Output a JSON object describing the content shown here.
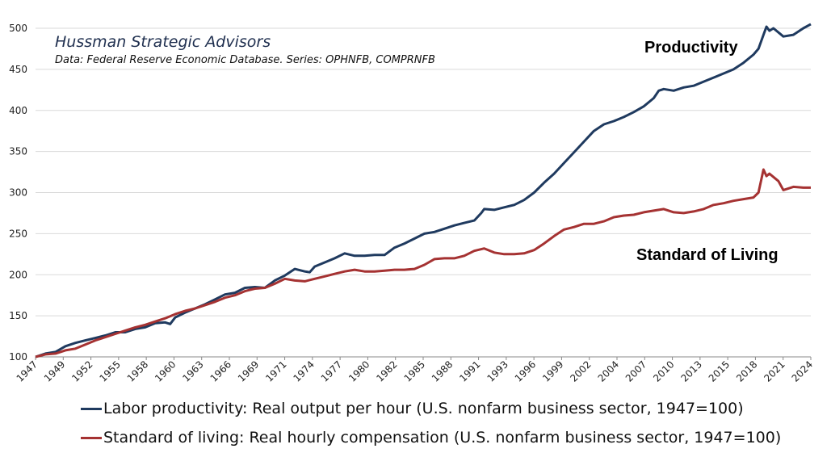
{
  "chart_data": {
    "type": "line",
    "title": "Hussman Strategic Advisors",
    "subtitle": "Data: Federal Reserve Economic Database. Series: OPHNFB, COMPRNFB",
    "xlim": [
      1947,
      2024.75
    ],
    "ylim": [
      100,
      510
    ],
    "y_ticks": [
      100,
      150,
      200,
      250,
      300,
      350,
      400,
      450,
      500
    ],
    "x_tick_labels": [
      "1947",
      "1949",
      "1952",
      "1955",
      "1958",
      "1960",
      "1963",
      "1966",
      "1969",
      "1971",
      "1974",
      "1977",
      "1980",
      "1982",
      "1985",
      "1988",
      "1991",
      "1993",
      "1996",
      "1999",
      "2002",
      "2004",
      "2007",
      "2010",
      "2013",
      "2015",
      "2018",
      "2021",
      "2024"
    ],
    "grid": true,
    "annotations": [
      {
        "text": "Productivity",
        "series": "productivity"
      },
      {
        "text": "Standard of Living",
        "series": "living"
      }
    ],
    "series": [
      {
        "name": "Labor productivity: Real output per hour (U.S. nonfarm business sector, 1947=100)",
        "key": "productivity",
        "color": "#1f3a5f",
        "x": [
          1947,
          1948,
          1949,
          1950,
          1951,
          1952,
          1953,
          1954,
          1955,
          1956,
          1957,
          1958,
          1959,
          1960,
          1960.5,
          1961,
          1962,
          1963,
          1964,
          1965,
          1966,
          1967,
          1968,
          1969,
          1970,
          1971,
          1972,
          1973,
          1974,
          1974.5,
          1975,
          1976,
          1977,
          1978,
          1979,
          1980,
          1981,
          1982,
          1983,
          1984,
          1985,
          1986,
          1987,
          1988,
          1989,
          1990,
          1991,
          1991.7,
          1992,
          1993,
          1994,
          1995,
          1996,
          1997,
          1998,
          1999,
          2000,
          2001,
          2002,
          2003,
          2004,
          2005,
          2006,
          2007,
          2008,
          2009,
          2009.5,
          2010,
          2011,
          2012,
          2013,
          2014,
          2015,
          2016,
          2017,
          2018,
          2019,
          2019.5,
          2020,
          2020.3,
          2020.6,
          2021,
          2022,
          2023,
          2024,
          2024.75
        ],
        "values": [
          100,
          104,
          106,
          113,
          117,
          120,
          123,
          126,
          130,
          130,
          134,
          136,
          141,
          142,
          140,
          148,
          154,
          159,
          164,
          170,
          176,
          178,
          184,
          185,
          184,
          193,
          199,
          207,
          204,
          203,
          210,
          215,
          220,
          226,
          223,
          223,
          224,
          224,
          233,
          238,
          244,
          250,
          252,
          256,
          260,
          263,
          266,
          275,
          280,
          279,
          282,
          285,
          291,
          300,
          312,
          323,
          336,
          349,
          362,
          375,
          383,
          387,
          392,
          398,
          405,
          415,
          424,
          426,
          424,
          428,
          430,
          435,
          440,
          445,
          450,
          458,
          468,
          475,
          492,
          502,
          497,
          500,
          490,
          492,
          500,
          505
        ]
      },
      {
        "name": "Standard of living: Real hourly compensation (U.S. nonfarm business sector, 1947=100)",
        "key": "living",
        "color": "#a53232",
        "x": [
          1947,
          1948,
          1949,
          1950,
          1951,
          1952,
          1953,
          1954,
          1955,
          1956,
          1957,
          1958,
          1959,
          1960,
          1961,
          1962,
          1963,
          1964,
          1965,
          1966,
          1967,
          1968,
          1969,
          1970,
          1971,
          1972,
          1973,
          1974,
          1975,
          1976,
          1977,
          1978,
          1979,
          1980,
          1981,
          1982,
          1983,
          1984,
          1985,
          1986,
          1987,
          1988,
          1989,
          1990,
          1991,
          1992,
          1993,
          1994,
          1995,
          1996,
          1997,
          1998,
          1999,
          2000,
          2001,
          2002,
          2003,
          2004,
          2005,
          2006,
          2007,
          2008,
          2009,
          2010,
          2011,
          2012,
          2013,
          2014,
          2015,
          2016,
          2017,
          2018,
          2019,
          2019.5,
          2020,
          2020.3,
          2020.6,
          2021,
          2021.5,
          2022,
          2023,
          2024,
          2024.75
        ],
        "values": [
          100,
          103,
          104,
          108,
          110,
          115,
          120,
          124,
          128,
          132,
          136,
          139,
          143,
          147,
          152,
          156,
          159,
          163,
          167,
          172,
          175,
          180,
          183,
          184,
          189,
          195,
          193,
          192,
          195,
          198,
          201,
          204,
          206,
          204,
          204,
          205,
          206,
          206,
          207,
          212,
          219,
          220,
          220,
          223,
          229,
          232,
          227,
          225,
          225,
          226,
          230,
          238,
          247,
          255,
          258,
          262,
          262,
          265,
          270,
          272,
          273,
          276,
          278,
          280,
          276,
          275,
          277,
          280,
          285,
          287,
          290,
          292,
          294,
          300,
          328,
          320,
          323,
          319,
          314,
          303,
          307,
          306,
          306
        ]
      }
    ]
  },
  "legend": {
    "productivity_label": "Labor productivity: Real output per hour (U.S. nonfarm business sector, 1947=100)",
    "living_label": "Standard of living: Real hourly compensation (U.S. nonfarm business sector, 1947=100)"
  }
}
